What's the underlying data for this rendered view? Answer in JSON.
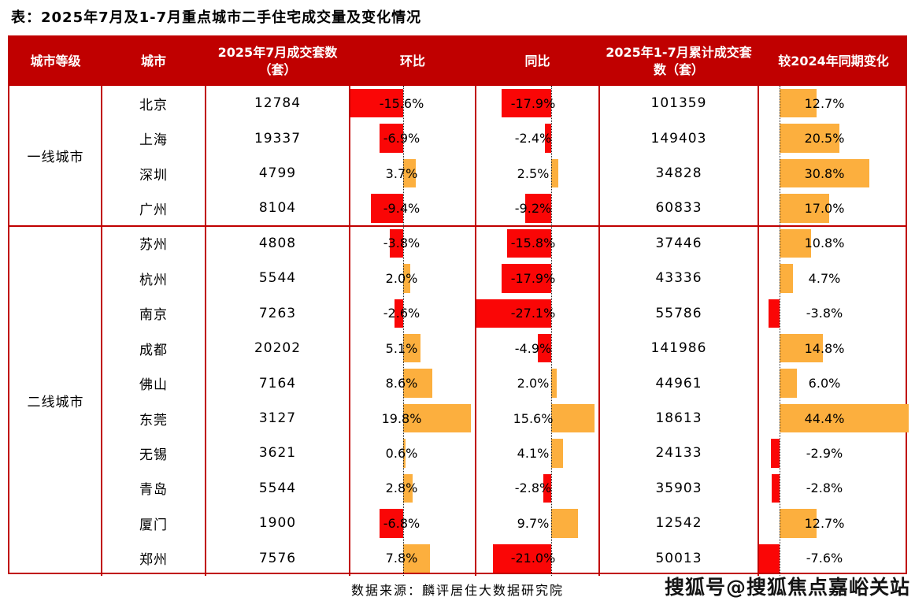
{
  "title": "表：2025年7月及1-7月重点城市二手住宅成交量及变化情况",
  "footer": {
    "source": "数据来源：麟评居住大数据研究院",
    "watermark": "搜狐号@搜狐焦点嘉峪关站"
  },
  "colors": {
    "header_bg": "#c00000",
    "header_text": "#ffffff",
    "border": "#c00000",
    "negative_bar": "#fa0606",
    "positive_bar": "#fcaf3e",
    "text": "#000000"
  },
  "chart_data": {
    "type": "table",
    "title": "2025年7月及1-7月重点城市二手住宅成交量及变化情况",
    "columns": [
      "城市等级",
      "城市",
      "2025年7月成交套数（套）",
      "环比",
      "同比",
      "2025年1-7月累计成交套数（套）",
      "较2024年同期变化"
    ],
    "bar_columns": [
      "环比",
      "同比",
      "较2024年同期变化"
    ],
    "tiers": [
      {
        "tier": "一线城市",
        "rows": [
          {
            "city": "北京",
            "jul_units": 12784,
            "mom_pct": -15.6,
            "yoy_pct": -17.9,
            "cum_units": 101359,
            "vs2024_pct": 12.7
          },
          {
            "city": "上海",
            "jul_units": 19337,
            "mom_pct": -6.9,
            "yoy_pct": -2.4,
            "cum_units": 149403,
            "vs2024_pct": 20.5
          },
          {
            "city": "深圳",
            "jul_units": 4799,
            "mom_pct": 3.7,
            "yoy_pct": 2.5,
            "cum_units": 34828,
            "vs2024_pct": 30.8
          },
          {
            "city": "广州",
            "jul_units": 8104,
            "mom_pct": -9.4,
            "yoy_pct": -9.2,
            "cum_units": 60833,
            "vs2024_pct": 17.0
          }
        ]
      },
      {
        "tier": "二线城市",
        "rows": [
          {
            "city": "苏州",
            "jul_units": 4808,
            "mom_pct": -3.8,
            "yoy_pct": -15.8,
            "cum_units": 37446,
            "vs2024_pct": 10.8
          },
          {
            "city": "杭州",
            "jul_units": 5544,
            "mom_pct": 2.0,
            "yoy_pct": -17.9,
            "cum_units": 43336,
            "vs2024_pct": 4.7
          },
          {
            "city": "南京",
            "jul_units": 7263,
            "mom_pct": -2.6,
            "yoy_pct": -27.1,
            "cum_units": 55786,
            "vs2024_pct": -3.8
          },
          {
            "city": "成都",
            "jul_units": 20202,
            "mom_pct": 5.1,
            "yoy_pct": -4.9,
            "cum_units": 141986,
            "vs2024_pct": 14.8
          },
          {
            "city": "佛山",
            "jul_units": 7164,
            "mom_pct": 8.6,
            "yoy_pct": 2.0,
            "cum_units": 44961,
            "vs2024_pct": 6.0
          },
          {
            "city": "东莞",
            "jul_units": 3127,
            "mom_pct": 19.8,
            "yoy_pct": 15.6,
            "cum_units": 18613,
            "vs2024_pct": 44.4
          },
          {
            "city": "无锡",
            "jul_units": 3621,
            "mom_pct": 0.6,
            "yoy_pct": 4.1,
            "cum_units": 24133,
            "vs2024_pct": -2.9
          },
          {
            "city": "青岛",
            "jul_units": 5544,
            "mom_pct": 2.8,
            "yoy_pct": -2.8,
            "cum_units": 35903,
            "vs2024_pct": -2.8
          },
          {
            "city": "厦门",
            "jul_units": 1900,
            "mom_pct": -6.8,
            "yoy_pct": 9.7,
            "cum_units": 12542,
            "vs2024_pct": 12.7
          },
          {
            "city": "郑州",
            "jul_units": 7576,
            "mom_pct": 7.8,
            "yoy_pct": -21.0,
            "cum_units": 50013,
            "vs2024_pct": -7.6
          }
        ]
      }
    ]
  }
}
